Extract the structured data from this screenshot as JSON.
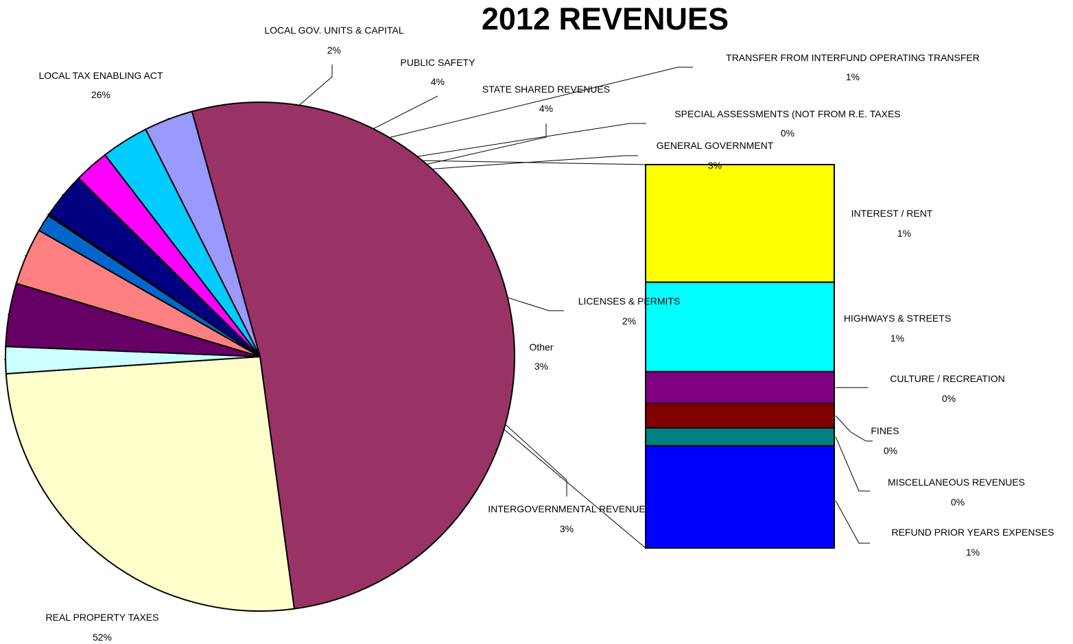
{
  "chart_data": {
    "type": "pie",
    "title": "2012 REVENUES",
    "pie": {
      "slices": [
        {
          "label": "REAL PROPERTY TAXES",
          "pct_label": "52%",
          "value": 52.0,
          "color": "#993366"
        },
        {
          "label": "LOCAL TAX ENABLING ACT",
          "pct_label": "26%",
          "value": 26.0,
          "color": "#FFFFCC"
        },
        {
          "label": "LOCAL GOV. UNITS & CAPITAL",
          "pct_label": "2%",
          "value": 1.7,
          "color": "#CCFFFF"
        },
        {
          "label": "PUBLIC SAFETY",
          "pct_label": "4%",
          "value": 4.0,
          "color": "#660066"
        },
        {
          "label": "STATE SHARED REVENUES",
          "pct_label": "4%",
          "value": 3.6,
          "color": "#FF8080"
        },
        {
          "label": "TRANSFER FROM INTERFUND OPERATING TRANSFER",
          "pct_label": "1%",
          "value": 1.1,
          "color": "#0066CC"
        },
        {
          "label": "SPECIAL ASSESSMENTS (NOT FROM R.E. TAXES",
          "pct_label": "0%",
          "value": 0.1,
          "color": "#0066CC"
        },
        {
          "label": "GENERAL GOVERNMENT",
          "pct_label": "3%",
          "value": 2.9,
          "color": "#000080"
        },
        {
          "label": "LICENSES & PERMITS",
          "pct_label": "2%",
          "value": 2.2,
          "color": "#FF00FF"
        },
        {
          "label": "Other",
          "pct_label": "3%",
          "value": 3.0,
          "color": "#00CCFF"
        },
        {
          "label": "INTERGOVERNMENTAL REVENUE",
          "pct_label": "3%",
          "value": 3.1,
          "color": "#9999FF"
        }
      ]
    },
    "other_breakdown": {
      "segments": [
        {
          "label": "INTEREST / RENT",
          "pct_label": "1%",
          "value": 0.92,
          "color": "#FFFF00"
        },
        {
          "label": "HIGHWAYS & STREETS",
          "pct_label": "1%",
          "value": 0.7,
          "color": "#00FFFF"
        },
        {
          "label": "CULTURE / RECREATION",
          "pct_label": "0%",
          "value": 0.25,
          "color": "#800080"
        },
        {
          "label": "FINES",
          "pct_label": "0%",
          "value": 0.19,
          "color": "#800000"
        },
        {
          "label": "MISCELLANEOUS REVENUES",
          "pct_label": "0%",
          "value": 0.14,
          "color": "#008080"
        },
        {
          "label": "REFUND PRIOR YEARS EXPENSES",
          "pct_label": "1%",
          "value": 0.8,
          "color": "#0000FF"
        }
      ]
    }
  }
}
